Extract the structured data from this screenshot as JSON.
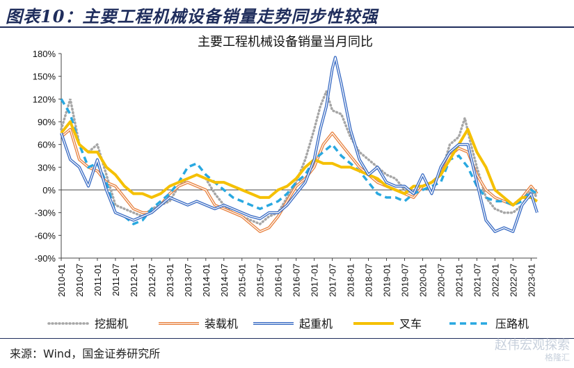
{
  "figure": {
    "title": "图表10：主要工程机械设备销量走势同步性较强",
    "source": "来源：Wind，国金证券研究所",
    "watermark": "赵伟宏观探索",
    "watermark_sub": "格隆汇"
  },
  "chart_data": {
    "type": "line",
    "title": "主要工程机械设备销量当月同比",
    "xlabel": "",
    "ylabel": "",
    "ylim": [
      -90,
      180
    ],
    "yticks": [
      -90,
      -60,
      -30,
      0,
      30,
      60,
      90,
      120,
      150,
      180
    ],
    "ytick_labels": [
      "-90%",
      "-60%",
      "-30%",
      "0%",
      "30%",
      "60%",
      "90%",
      "120%",
      "150%",
      "180%"
    ],
    "xlim": [
      "2010-01",
      "2023-03"
    ],
    "xtick_labels": [
      "2010-01",
      "2010-07",
      "2011-01",
      "2011-07",
      "2012-01",
      "2012-07",
      "2013-01",
      "2013-07",
      "2014-01",
      "2014-07",
      "2015-01",
      "2015-07",
      "2016-01",
      "2016-07",
      "2017-01",
      "2017-07",
      "2018-01",
      "2018-07",
      "2019-01",
      "2019-07",
      "2020-01",
      "2020-07",
      "2021-01",
      "2021-07",
      "2022-01",
      "2022-07",
      "2023-01"
    ],
    "grid": false,
    "legend_position": "bottom",
    "series": [
      {
        "name": "挖掘机",
        "color": "#a6a6a6",
        "style": "dotted",
        "x": [
          "2010-01",
          "2010-04",
          "2010-07",
          "2010-10",
          "2011-01",
          "2011-04",
          "2011-07",
          "2011-10",
          "2012-01",
          "2012-04",
          "2012-07",
          "2012-10",
          "2013-01",
          "2013-04",
          "2013-07",
          "2013-10",
          "2014-01",
          "2014-04",
          "2014-07",
          "2014-10",
          "2015-01",
          "2015-04",
          "2015-07",
          "2015-10",
          "2016-01",
          "2016-04",
          "2016-07",
          "2016-10",
          "2017-01",
          "2017-03",
          "2017-05",
          "2017-07",
          "2017-10",
          "2018-01",
          "2018-04",
          "2018-07",
          "2018-10",
          "2019-01",
          "2019-04",
          "2019-07",
          "2019-10",
          "2020-01",
          "2020-04",
          "2020-07",
          "2020-10",
          "2021-01",
          "2021-03",
          "2021-05",
          "2021-07",
          "2021-10",
          "2022-01",
          "2022-04",
          "2022-07",
          "2022-10",
          "2023-01",
          "2023-03"
        ],
        "values": [
          80,
          120,
          60,
          50,
          60,
          20,
          -20,
          -25,
          -30,
          -35,
          -25,
          -20,
          -15,
          5,
          15,
          20,
          15,
          -5,
          -20,
          -30,
          -35,
          -40,
          -45,
          -35,
          -30,
          -10,
          10,
          40,
          80,
          110,
          130,
          105,
          100,
          70,
          50,
          40,
          30,
          20,
          15,
          0,
          -5,
          5,
          10,
          20,
          60,
          70,
          95,
          60,
          30,
          -10,
          -25,
          -30,
          -30,
          -20,
          0,
          -10
        ]
      },
      {
        "name": "装载机",
        "color": "#e8823f",
        "style": "double",
        "x": [
          "2010-01",
          "2010-04",
          "2010-07",
          "2010-10",
          "2011-01",
          "2011-04",
          "2011-07",
          "2011-10",
          "2012-01",
          "2012-04",
          "2012-07",
          "2012-10",
          "2013-01",
          "2013-04",
          "2013-07",
          "2013-10",
          "2014-01",
          "2014-04",
          "2014-07",
          "2014-10",
          "2015-01",
          "2015-04",
          "2015-07",
          "2015-10",
          "2016-01",
          "2016-04",
          "2016-07",
          "2016-10",
          "2017-01",
          "2017-04",
          "2017-07",
          "2017-10",
          "2018-01",
          "2018-04",
          "2018-07",
          "2018-10",
          "2019-01",
          "2019-04",
          "2019-07",
          "2019-10",
          "2020-01",
          "2020-04",
          "2020-07",
          "2020-10",
          "2021-01",
          "2021-04",
          "2021-07",
          "2021-10",
          "2022-01",
          "2022-04",
          "2022-07",
          "2022-10",
          "2023-01",
          "2023-03"
        ],
        "values": [
          70,
          80,
          40,
          30,
          25,
          10,
          5,
          -10,
          -25,
          -30,
          -30,
          -20,
          -5,
          5,
          10,
          5,
          0,
          -20,
          -25,
          -30,
          -35,
          -45,
          -55,
          -50,
          -35,
          -15,
          5,
          15,
          30,
          60,
          75,
          60,
          45,
          30,
          20,
          10,
          5,
          0,
          -5,
          -10,
          5,
          10,
          20,
          45,
          55,
          50,
          20,
          0,
          -10,
          -15,
          -20,
          -10,
          5,
          -5
        ]
      },
      {
        "name": "起重机",
        "color": "#3a6cc4",
        "style": "double",
        "x": [
          "2010-01",
          "2010-04",
          "2010-07",
          "2010-10",
          "2011-01",
          "2011-04",
          "2011-07",
          "2011-10",
          "2012-01",
          "2012-04",
          "2012-07",
          "2012-10",
          "2013-01",
          "2013-04",
          "2013-07",
          "2013-10",
          "2014-01",
          "2014-04",
          "2014-07",
          "2014-10",
          "2015-01",
          "2015-04",
          "2015-07",
          "2015-10",
          "2016-01",
          "2016-04",
          "2016-07",
          "2016-10",
          "2017-01",
          "2017-03",
          "2017-05",
          "2017-07",
          "2017-08",
          "2017-10",
          "2018-01",
          "2018-04",
          "2018-07",
          "2018-10",
          "2019-01",
          "2019-04",
          "2019-07",
          "2019-10",
          "2020-01",
          "2020-04",
          "2020-07",
          "2020-10",
          "2021-01",
          "2021-04",
          "2021-07",
          "2021-10",
          "2022-01",
          "2022-04",
          "2022-07",
          "2022-10",
          "2023-01",
          "2023-03"
        ],
        "values": [
          75,
          40,
          30,
          5,
          40,
          0,
          -30,
          -35,
          -40,
          -35,
          -30,
          -20,
          -10,
          -15,
          -20,
          -15,
          -20,
          -25,
          -20,
          -25,
          -30,
          -35,
          -38,
          -30,
          -30,
          -20,
          -5,
          10,
          40,
          80,
          110,
          160,
          175,
          140,
          80,
          40,
          20,
          30,
          10,
          5,
          5,
          -5,
          20,
          -5,
          30,
          50,
          60,
          60,
          10,
          -40,
          -55,
          -50,
          -55,
          -20,
          -5,
          -30
        ]
      },
      {
        "name": "叉车",
        "color": "#f5c000",
        "style": "solid",
        "x": [
          "2010-01",
          "2010-04",
          "2010-07",
          "2010-10",
          "2011-01",
          "2011-04",
          "2011-07",
          "2011-10",
          "2012-01",
          "2012-04",
          "2012-07",
          "2012-10",
          "2013-01",
          "2013-04",
          "2013-07",
          "2013-10",
          "2014-01",
          "2014-04",
          "2014-07",
          "2014-10",
          "2015-01",
          "2015-04",
          "2015-07",
          "2015-10",
          "2016-01",
          "2016-04",
          "2016-07",
          "2016-10",
          "2017-01",
          "2017-04",
          "2017-07",
          "2017-10",
          "2018-01",
          "2018-04",
          "2018-07",
          "2018-10",
          "2019-01",
          "2019-04",
          "2019-07",
          "2019-10",
          "2020-01",
          "2020-04",
          "2020-07",
          "2020-10",
          "2021-01",
          "2021-04",
          "2021-07",
          "2021-10",
          "2022-01",
          "2022-04",
          "2022-07",
          "2022-10",
          "2023-01",
          "2023-03"
        ],
        "values": [
          75,
          90,
          60,
          50,
          50,
          30,
          20,
          5,
          -5,
          -5,
          -10,
          -5,
          5,
          10,
          15,
          20,
          15,
          10,
          10,
          5,
          0,
          -5,
          -10,
          -10,
          0,
          5,
          15,
          30,
          40,
          35,
          35,
          30,
          30,
          25,
          20,
          15,
          5,
          0,
          -5,
          5,
          5,
          10,
          20,
          40,
          60,
          80,
          50,
          30,
          0,
          -10,
          -20,
          -10,
          -10,
          -15
        ]
      },
      {
        "name": "压路机",
        "color": "#29a8e0",
        "style": "dashed",
        "x": [
          "2010-01",
          "2010-04",
          "2010-07",
          "2010-10",
          "2011-01",
          "2011-04",
          "2011-07",
          "2011-10",
          "2012-01",
          "2012-04",
          "2012-07",
          "2012-10",
          "2013-01",
          "2013-04",
          "2013-07",
          "2013-10",
          "2014-01",
          "2014-04",
          "2014-07",
          "2014-10",
          "2015-01",
          "2015-04",
          "2015-07",
          "2015-10",
          "2016-01",
          "2016-04",
          "2016-07",
          "2016-10",
          "2017-01",
          "2017-04",
          "2017-07",
          "2017-10",
          "2018-01",
          "2018-04",
          "2018-07",
          "2018-10",
          "2019-01",
          "2019-04",
          "2019-07",
          "2019-10",
          "2020-01",
          "2020-04",
          "2020-07",
          "2020-10",
          "2021-01",
          "2021-04",
          "2021-07",
          "2021-10",
          "2022-01",
          "2022-04",
          "2022-07",
          "2022-10",
          "2023-01",
          "2023-03"
        ],
        "values": [
          120,
          100,
          60,
          30,
          35,
          10,
          -30,
          -35,
          -45,
          -40,
          -25,
          -15,
          -5,
          10,
          30,
          35,
          20,
          10,
          0,
          -10,
          -15,
          -20,
          -25,
          -20,
          -15,
          -5,
          10,
          20,
          40,
          50,
          60,
          45,
          35,
          25,
          10,
          -5,
          -10,
          -10,
          -15,
          -5,
          0,
          5,
          10,
          40,
          45,
          30,
          5,
          -10,
          -15,
          -15,
          -20,
          -15,
          0,
          -5
        ]
      }
    ]
  }
}
